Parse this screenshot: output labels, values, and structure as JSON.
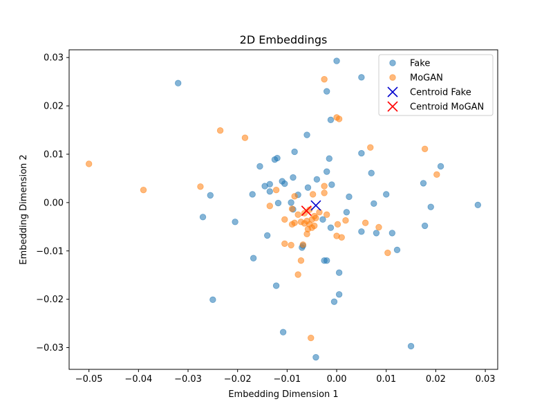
{
  "chart_data": {
    "type": "scatter",
    "title": "2D Embeddings",
    "xlabel": "Embedding Dimension 1",
    "ylabel": "Embedding Dimension 2",
    "xlim": [
      -0.054,
      0.0325
    ],
    "ylim": [
      -0.0345,
      0.0316
    ],
    "xticks": [
      {
        "value": -0.05,
        "label": "−0.05"
      },
      {
        "value": -0.04,
        "label": "−0.04"
      },
      {
        "value": -0.03,
        "label": "−0.03"
      },
      {
        "value": -0.02,
        "label": "−0.02"
      },
      {
        "value": -0.01,
        "label": "−0.01"
      },
      {
        "value": 0.0,
        "label": "0.00"
      },
      {
        "value": 0.01,
        "label": "0.01"
      },
      {
        "value": 0.02,
        "label": "0.02"
      },
      {
        "value": 0.03,
        "label": "0.03"
      }
    ],
    "yticks": [
      {
        "value": -0.03,
        "label": "−0.03"
      },
      {
        "value": -0.02,
        "label": "−0.02"
      },
      {
        "value": -0.01,
        "label": "−0.01"
      },
      {
        "value": 0.0,
        "label": "0.00"
      },
      {
        "value": 0.01,
        "label": "0.01"
      },
      {
        "value": 0.02,
        "label": "0.02"
      },
      {
        "value": 0.03,
        "label": "0.03"
      }
    ],
    "grid": false,
    "legend_position": "top-right",
    "series": [
      {
        "name": "Fake",
        "marker": "circle",
        "color": "#1f77b4",
        "points": [
          [
            -0.032,
            0.0247
          ],
          [
            0.0,
            0.0293
          ],
          [
            -0.002,
            0.023
          ],
          [
            0.005,
            0.0259
          ],
          [
            -0.0012,
            0.0171
          ],
          [
            -0.006,
            0.014
          ],
          [
            -0.0085,
            0.0105
          ],
          [
            -0.012,
            0.0092
          ],
          [
            -0.0125,
            0.0089
          ],
          [
            -0.0155,
            0.0075
          ],
          [
            -0.0015,
            0.0091
          ],
          [
            0.005,
            0.0102
          ],
          [
            0.007,
            0.0061
          ],
          [
            -0.002,
            0.0064
          ],
          [
            -0.004,
            0.0048
          ],
          [
            -0.0088,
            0.0052
          ],
          [
            -0.011,
            0.0044
          ],
          [
            -0.0105,
            0.0039
          ],
          [
            -0.0145,
            0.0034
          ],
          [
            -0.0135,
            0.0038
          ],
          [
            -0.0058,
            0.0031
          ],
          [
            -0.001,
            0.0037
          ],
          [
            -0.0135,
            0.0023
          ],
          [
            -0.017,
            0.0017
          ],
          [
            -0.0078,
            0.0016
          ],
          [
            -0.0255,
            0.0015
          ],
          [
            0.0175,
            0.004
          ],
          [
            0.021,
            0.0075
          ],
          [
            0.0025,
            0.0012
          ],
          [
            0.01,
            0.0017
          ],
          [
            0.0075,
            -0.0002
          ],
          [
            0.019,
            -0.0009
          ],
          [
            0.0285,
            -0.0005
          ],
          [
            -0.0118,
            -0.0001
          ],
          [
            -0.0092,
            0.0
          ],
          [
            -0.0088,
            -0.0014
          ],
          [
            -0.0028,
            -0.0035
          ],
          [
            -0.027,
            -0.003
          ],
          [
            -0.0205,
            -0.004
          ],
          [
            -0.0012,
            -0.0052
          ],
          [
            0.002,
            -0.002
          ],
          [
            0.0178,
            -0.0048
          ],
          [
            0.005,
            -0.006
          ],
          [
            0.008,
            -0.0063
          ],
          [
            0.0112,
            -0.0063
          ],
          [
            -0.014,
            -0.0068
          ],
          [
            -0.007,
            -0.0093
          ],
          [
            -0.0068,
            -0.0089
          ],
          [
            0.0122,
            -0.0098
          ],
          [
            -0.0168,
            -0.0115
          ],
          [
            -0.0025,
            -0.012
          ],
          [
            -0.002,
            -0.012
          ],
          [
            0.0005,
            -0.0145
          ],
          [
            -0.0122,
            -0.0172
          ],
          [
            -0.0005,
            -0.0205
          ],
          [
            0.0005,
            -0.019
          ],
          [
            -0.025,
            -0.0201
          ],
          [
            -0.0108,
            -0.0268
          ],
          [
            0.015,
            -0.0297
          ],
          [
            -0.0042,
            -0.032
          ]
        ]
      },
      {
        "name": "MoGAN",
        "marker": "circle",
        "color": "#ff7f0e",
        "points": [
          [
            -0.05,
            0.008
          ],
          [
            -0.039,
            0.0026
          ],
          [
            -0.0235,
            0.0149
          ],
          [
            -0.0185,
            0.0134
          ],
          [
            -0.0275,
            0.0033
          ],
          [
            -0.0025,
            0.0255
          ],
          [
            0.0,
            0.0176
          ],
          [
            0.0005,
            0.0173
          ],
          [
            0.0068,
            0.0114
          ],
          [
            0.0178,
            0.0111
          ],
          [
            0.0202,
            0.0058
          ],
          [
            -0.0025,
            0.0034
          ],
          [
            -0.0122,
            0.0026
          ],
          [
            -0.0025,
            0.002
          ],
          [
            -0.0048,
            0.0017
          ],
          [
            -0.0085,
            0.0013
          ],
          [
            -0.0135,
            -0.0007
          ],
          [
            -0.0055,
            -0.0015
          ],
          [
            -0.009,
            -0.0013
          ],
          [
            -0.0078,
            -0.0025
          ],
          [
            -0.0065,
            -0.0022
          ],
          [
            -0.0045,
            -0.0028
          ],
          [
            -0.0035,
            -0.002
          ],
          [
            -0.002,
            -0.0025
          ],
          [
            -0.0105,
            -0.0035
          ],
          [
            -0.0085,
            -0.0042
          ],
          [
            -0.009,
            -0.0045
          ],
          [
            -0.0072,
            -0.004
          ],
          [
            -0.006,
            -0.0038
          ],
          [
            -0.005,
            -0.0035
          ],
          [
            -0.0042,
            -0.0032
          ],
          [
            -0.0055,
            -0.0045
          ],
          [
            -0.0065,
            -0.0043
          ],
          [
            -0.0058,
            -0.0055
          ],
          [
            -0.005,
            -0.0052
          ],
          [
            -0.0045,
            -0.0048
          ],
          [
            -0.006,
            -0.0065
          ],
          [
            0.0002,
            -0.0045
          ],
          [
            0.0018,
            -0.0037
          ],
          [
            0.0058,
            -0.0042
          ],
          [
            0.0085,
            -0.0051
          ],
          [
            0.0,
            -0.0069
          ],
          [
            0.001,
            -0.0072
          ],
          [
            -0.0105,
            -0.0085
          ],
          [
            -0.0092,
            -0.0088
          ],
          [
            -0.0068,
            -0.0087
          ],
          [
            0.0103,
            -0.0104
          ],
          [
            -0.0072,
            -0.012
          ],
          [
            -0.0078,
            -0.0149
          ],
          [
            -0.0052,
            -0.028
          ]
        ]
      },
      {
        "name": "Centroid Fake",
        "marker": "x",
        "color": "#0000cd",
        "points": [
          [
            -0.0042,
            -0.0006
          ]
        ]
      },
      {
        "name": "Centroid MoGAN",
        "marker": "x",
        "color": "#ff0000",
        "points": [
          [
            -0.0061,
            -0.0017
          ]
        ]
      }
    ]
  }
}
